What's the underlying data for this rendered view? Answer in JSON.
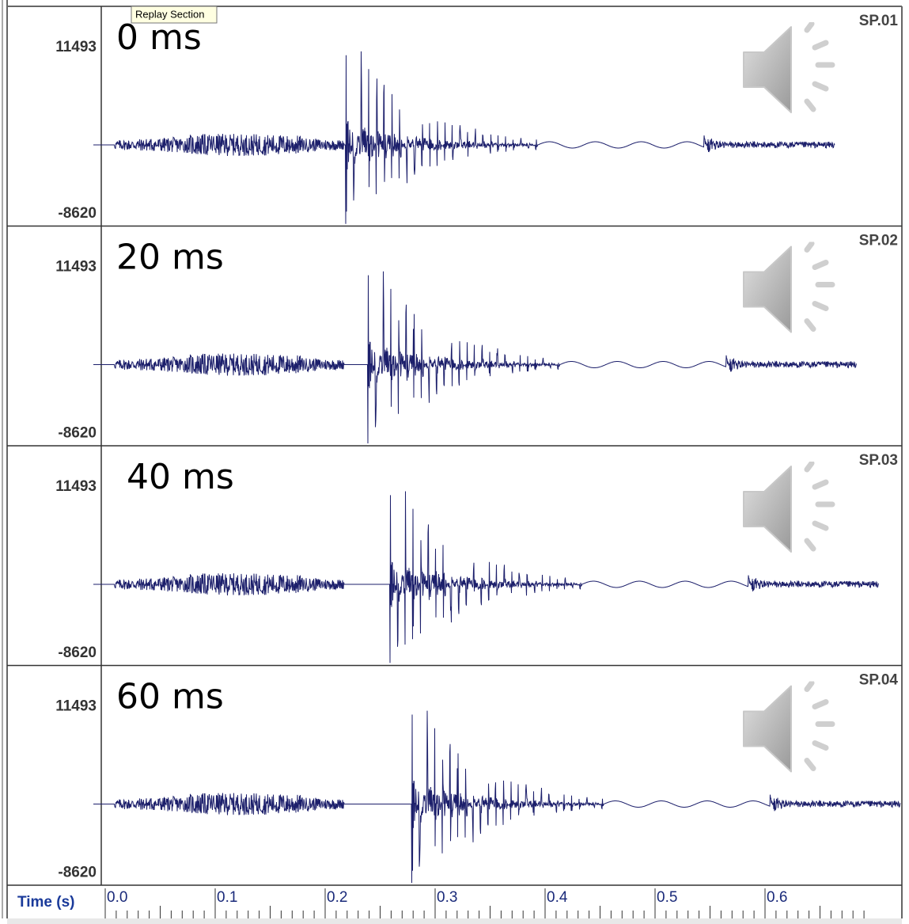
{
  "tooltip": "Replay Section",
  "panels": [
    {
      "label": "0 ms",
      "name": "SP.01",
      "y_max": "11493",
      "y_min": "-8620"
    },
    {
      "label": "20 ms",
      "name": "SP.02",
      "y_max": "11493",
      "y_min": "-8620"
    },
    {
      "label": "40 ms",
      "name": "SP.03",
      "y_max": "11493",
      "y_min": "-8620"
    },
    {
      "label": "60 ms",
      "name": "SP.04",
      "y_max": "11493",
      "y_min": "-8620"
    }
  ],
  "time_axis": {
    "label": "Time (s)",
    "ticks": [
      "0.0",
      "0.1",
      "0.2",
      "0.3",
      "0.4",
      "0.5",
      "0.6"
    ]
  }
}
